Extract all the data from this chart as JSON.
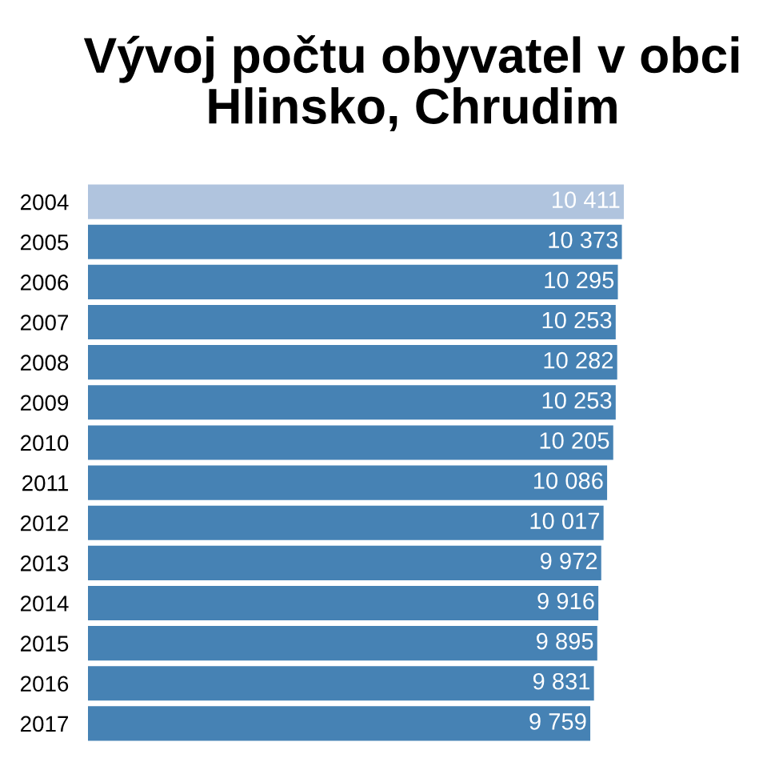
{
  "chart_data": {
    "type": "bar",
    "orientation": "horizontal",
    "title": "Vývoj počtu obyvatel v obci\nHlinsko, Chrudim",
    "categories": [
      "2004",
      "2005",
      "2006",
      "2007",
      "2008",
      "2009",
      "2010",
      "2011",
      "2012",
      "2013",
      "2014",
      "2015",
      "2016",
      "2017"
    ],
    "values": [
      10411,
      10373,
      10295,
      10253,
      10282,
      10253,
      10205,
      10086,
      10017,
      9972,
      9916,
      9895,
      9831,
      9759
    ],
    "value_labels": [
      "10 411",
      "10 373",
      "10 295",
      "10 253",
      "10 282",
      "10 253",
      "10 205",
      "10 086",
      "10 017",
      "9 972",
      "9 916",
      "9 895",
      "9 831",
      "9 759"
    ],
    "colors": [
      "#b0c4de",
      "#4682b4",
      "#4682b4",
      "#4682b4",
      "#4682b4",
      "#4682b4",
      "#4682b4",
      "#4682b4",
      "#4682b4",
      "#4682b4",
      "#4682b4",
      "#4682b4",
      "#4682b4",
      "#4682b4"
    ],
    "tick_labels": "y"
  }
}
